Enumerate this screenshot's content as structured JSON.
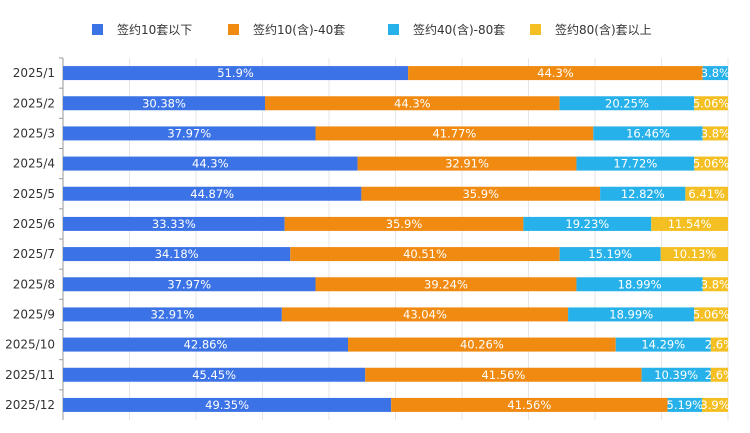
{
  "chart_data": {
    "type": "bar",
    "orientation": "horizontal",
    "stacked": true,
    "percent": true,
    "xlim": [
      0,
      100
    ],
    "grid": true,
    "legend_placement": "top",
    "categories": [
      "2025/1",
      "2025/2",
      "2025/3",
      "2025/4",
      "2025/5",
      "2025/6",
      "2025/7",
      "2025/8",
      "2025/9",
      "2025/10",
      "2025/11",
      "2025/12"
    ],
    "series": [
      {
        "name": "签约10套以下",
        "color": "#3b72e6",
        "values": [
          51.9,
          30.38,
          37.97,
          44.3,
          44.87,
          33.33,
          34.18,
          37.97,
          32.91,
          42.86,
          45.45,
          49.35
        ]
      },
      {
        "name": "签约10(含)-40套",
        "color": "#f08a10",
        "values": [
          44.3,
          44.3,
          41.77,
          32.91,
          35.9,
          35.9,
          40.51,
          39.24,
          43.04,
          40.26,
          41.56,
          41.56
        ]
      },
      {
        "name": "签约40(含)-80套",
        "color": "#27b1ea",
        "values": [
          3.8,
          20.25,
          16.46,
          17.72,
          12.82,
          19.23,
          15.19,
          18.99,
          18.99,
          14.29,
          10.39,
          5.19
        ]
      },
      {
        "name": "签约80(含)套以上",
        "color": "#f4bf22",
        "values": [
          0,
          5.06,
          3.8,
          5.06,
          6.41,
          11.54,
          10.13,
          3.8,
          5.06,
          2.6,
          2.6,
          3.9
        ]
      }
    ]
  }
}
